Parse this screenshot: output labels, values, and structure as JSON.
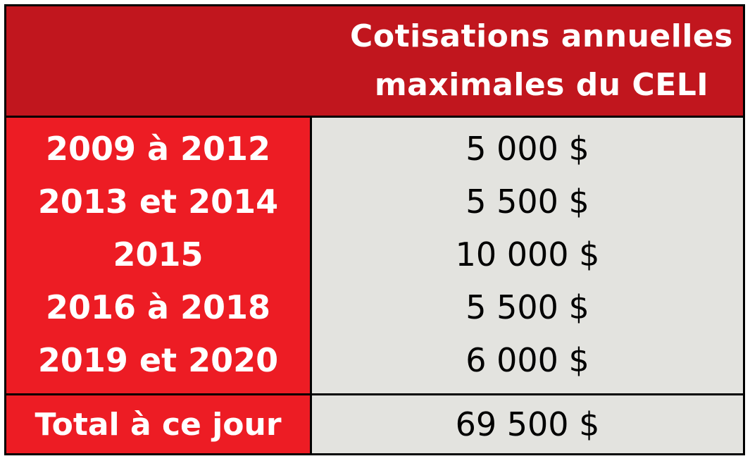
{
  "colors": {
    "header_bg": "#c1161e",
    "accent": "#ed1c24",
    "cell_bg": "#e3e3df"
  },
  "header": {
    "title_line1": "Cotisations annuelles",
    "title_line2": "maximales du CELI"
  },
  "rows": [
    {
      "period": "2009 à 2012",
      "amount": "5 000 $"
    },
    {
      "period": "2013 et 2014",
      "amount": "5 500 $"
    },
    {
      "period": "2015",
      "amount": "10 000 $"
    },
    {
      "period": "2016 à 2018",
      "amount": "5 500 $"
    },
    {
      "period": "2019 et 2020",
      "amount": "6 000 $"
    }
  ],
  "total": {
    "label": "Total à ce jour",
    "amount": "69 500 $"
  }
}
